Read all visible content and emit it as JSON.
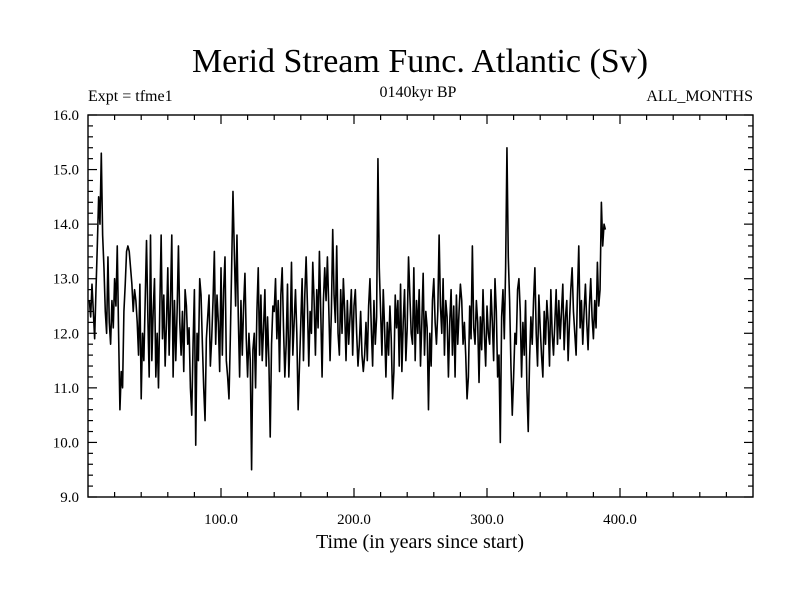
{
  "chart_data": {
    "type": "line",
    "title": "Merid Stream Func. Atlantic (Sv)",
    "subtitle_left": "Expt = tfme1",
    "subtitle_center": "0140kyr BP",
    "subtitle_right": "ALL_MONTHS",
    "xlabel": "Time (in years since start)",
    "ylabel": "",
    "xlim": [
      0,
      500
    ],
    "ylim": [
      9.0,
      16.0
    ],
    "x_ticks": [
      100,
      200,
      300,
      400
    ],
    "x_tick_labels": [
      "100.0",
      "200.0",
      "300.0",
      "400.0"
    ],
    "y_ticks": [
      9,
      10,
      11,
      12,
      13,
      14,
      15,
      16
    ],
    "y_tick_labels": [
      "9.0",
      "10.0",
      "11.0",
      "12.0",
      "13.0",
      "14.0",
      "15.0",
      "16.0"
    ],
    "grid": false,
    "series": [
      {
        "name": "Merid Stream Func. Atlantic",
        "color": "#000000",
        "x_start": 1,
        "x_step": 1,
        "values": [
          12.6,
          12.3,
          12.9,
          12.4,
          11.9,
          12.8,
          13.6,
          14.5,
          14.0,
          15.3,
          13.8,
          13.2,
          12.4,
          12.0,
          13.4,
          12.2,
          11.8,
          12.6,
          12.1,
          13.0,
          12.5,
          13.6,
          12.0,
          10.6,
          11.3,
          11.0,
          12.4,
          12.9,
          13.5,
          13.6,
          13.5,
          13.2,
          12.9,
          12.4,
          12.8,
          12.6,
          12.2,
          11.6,
          12.9,
          10.8,
          12.0,
          11.5,
          12.6,
          13.7,
          12.3,
          11.2,
          13.8,
          11.5,
          12.4,
          13.0,
          11.2,
          12.0,
          11.0,
          12.5,
          13.8,
          11.9,
          12.7,
          11.4,
          12.2,
          13.2,
          11.6,
          12.6,
          13.8,
          11.2,
          12.6,
          11.5,
          12.4,
          13.6,
          12.2,
          11.6,
          12.4,
          11.3,
          12.8,
          12.5,
          11.8,
          12.1,
          11.0,
          10.5,
          11.8,
          12.8,
          9.95,
          12.0,
          11.5,
          13.0,
          12.7,
          11.8,
          11.0,
          10.4,
          11.9,
          12.3,
          12.7,
          11.4,
          11.9,
          12.6,
          13.5,
          11.8,
          12.7,
          12.2,
          11.3,
          13.2,
          11.6,
          12.8,
          13.4,
          11.5,
          11.2,
          10.8,
          11.9,
          13.2,
          14.6,
          13.5,
          12.5,
          13.8,
          12.3,
          11.2,
          12.6,
          11.6,
          12.5,
          13.1,
          11.9,
          11.2,
          12.0,
          11.5,
          9.5,
          11.7,
          12.0,
          11.0,
          12.4,
          13.2,
          11.6,
          12.7,
          11.5,
          12.1,
          12.8,
          11.4,
          12.3,
          11.5,
          10.1,
          11.8,
          12.5,
          12.4,
          13.0,
          11.9,
          12.6,
          11.3,
          12.7,
          13.2,
          12.1,
          11.2,
          11.8,
          12.9,
          11.2,
          12.0,
          13.3,
          11.6,
          12.2,
          12.8,
          12.0,
          10.6,
          11.4,
          12.2,
          13.0,
          11.5,
          12.7,
          13.4,
          12.5,
          11.4,
          12.4,
          12.0,
          13.3,
          12.6,
          11.6,
          12.8,
          12.1,
          13.5,
          12.4,
          11.2,
          12.6,
          13.2,
          12.6,
          13.4,
          12.5,
          11.5,
          12.4,
          13.9,
          12.7,
          12.2,
          13.6,
          12.0,
          11.6,
          12.8,
          12.0,
          13.0,
          12.4,
          11.5,
          12.6,
          11.8,
          12.3,
          12.8,
          11.6,
          12.5,
          12.8,
          12.0,
          11.4,
          11.8,
          12.4,
          11.6,
          11.3,
          11.6,
          12.2,
          11.5,
          12.5,
          13.0,
          12.1,
          11.4,
          12.6,
          11.8,
          12.3,
          15.2,
          13.2,
          12.4,
          11.6,
          12.8,
          12.1,
          11.2,
          12.2,
          11.6,
          12.5,
          11.9,
          10.8,
          11.3,
          12.7,
          12.1,
          12.6,
          11.4,
          12.9,
          11.3,
          12.2,
          12.8,
          11.5,
          12.1,
          13.4,
          12.7,
          12.0,
          11.8,
          13.2,
          11.5,
          12.6,
          12.0,
          12.8,
          11.4,
          12.2,
          13.1,
          11.6,
          12.4,
          12.1,
          10.6,
          12.0,
          11.4,
          12.6,
          13.0,
          12.2,
          11.8,
          12.4,
          13.8,
          12.5,
          12.0,
          13.0,
          11.6,
          12.6,
          12.3,
          11.2,
          12.2,
          12.8,
          11.6,
          12.5,
          11.2,
          12.7,
          11.8,
          12.4,
          12.9,
          12.6,
          11.8,
          12.2,
          11.6,
          10.8,
          11.2,
          12.5,
          11.9,
          13.6,
          12.1,
          11.8,
          12.6,
          12.2,
          11.1,
          12.3,
          11.7,
          12.8,
          12.0,
          11.4,
          12.5,
          12.0,
          11.8,
          12.8,
          12.2,
          11.5,
          13.0,
          12.4,
          11.2,
          11.6,
          10.0,
          12.3,
          12.8,
          11.9,
          13.2,
          15.4,
          13.4,
          12.6,
          11.4,
          10.5,
          11.2,
          12.0,
          11.8,
          12.8,
          13.0,
          12.4,
          11.2,
          12.2,
          11.6,
          12.6,
          11.0,
          10.2,
          11.5,
          12.3,
          11.8,
          12.6,
          13.2,
          12.0,
          11.4,
          12.7,
          12.1,
          11.6,
          11.2,
          12.4,
          11.8,
          12.6,
          12.2,
          11.4,
          12.8,
          12.0,
          11.6,
          12.2,
          12.8,
          11.8,
          12.6,
          11.9,
          12.4,
          12.9,
          11.7,
          12.3,
          12.6,
          11.5,
          12.2,
          12.8,
          13.2,
          12.4,
          12.0,
          11.6,
          12.7,
          13.6,
          12.1,
          12.6,
          11.8,
          12.4,
          12.9,
          12.2,
          11.7,
          12.5,
          13.0,
          12.3,
          11.9,
          12.6,
          12.1,
          13.3,
          12.5,
          12.8,
          14.4,
          13.6,
          14.0,
          13.9
        ]
      }
    ]
  }
}
